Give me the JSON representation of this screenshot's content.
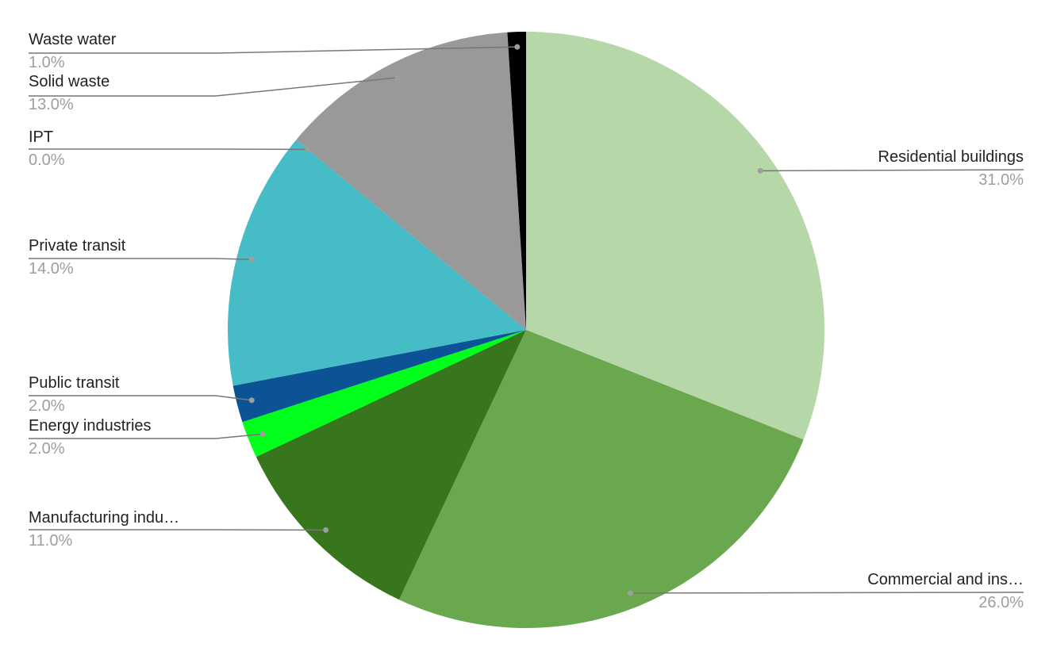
{
  "chart_data": {
    "type": "pie",
    "title": "",
    "start_angle": "top",
    "direction": "clockwise",
    "slices": [
      {
        "label": "Residential buildings",
        "value": 31.0,
        "display": "31.0%",
        "color": "#b6d7a8"
      },
      {
        "label": "Commercial and ins…",
        "value": 26.0,
        "display": "26.0%",
        "color": "#6aa84f"
      },
      {
        "label": "Manufacturing indu…",
        "value": 11.0,
        "display": "11.0%",
        "color": "#38761d"
      },
      {
        "label": "Energy industries",
        "value": 2.0,
        "display": "2.0%",
        "color": "#00ff1a"
      },
      {
        "label": "Public transit",
        "value": 2.0,
        "display": "2.0%",
        "color": "#0b5394"
      },
      {
        "label": "Private transit",
        "value": 14.0,
        "display": "14.0%",
        "color": "#45bcc6"
      },
      {
        "label": "IPT",
        "value": 0.0,
        "display": "0.0%",
        "color": "#45bcc6"
      },
      {
        "label": "Solid waste",
        "value": 13.0,
        "display": "13.0%",
        "color": "#999999"
      },
      {
        "label": "Waste water",
        "value": 1.0,
        "display": "1.0%",
        "color": "#000000"
      }
    ],
    "legend": "leader-line labels"
  }
}
